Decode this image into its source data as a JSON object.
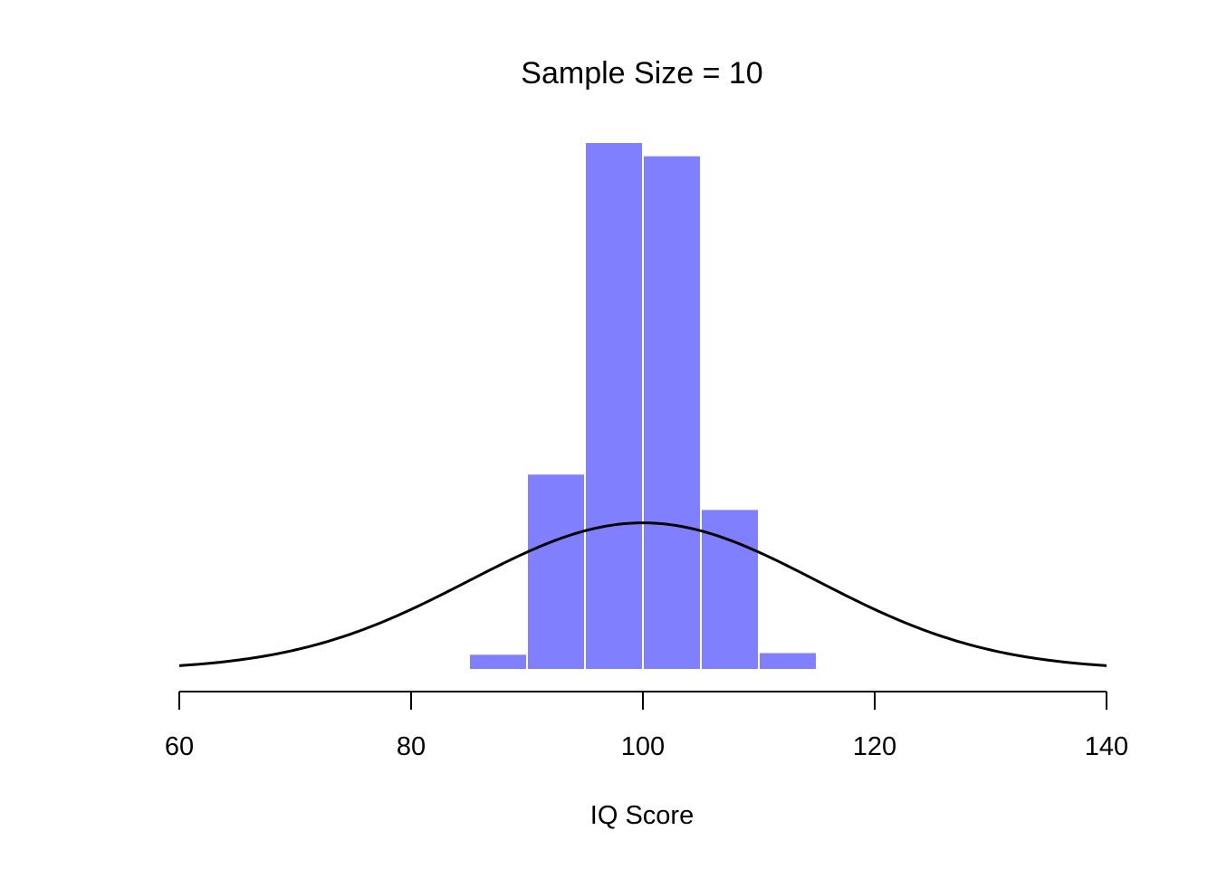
{
  "chart_data": {
    "type": "bar",
    "title": "Sample Size = 10",
    "xlabel": "IQ Score",
    "ylabel": "",
    "xlim": [
      60,
      140
    ],
    "x_ticks": [
      60,
      80,
      100,
      120,
      140
    ],
    "x_tick_labels": [
      "60",
      "80",
      "100",
      "120",
      "140"
    ],
    "y_axis_shown": false,
    "grid": false,
    "histogram": {
      "bin_edges": [
        85,
        90,
        95,
        100,
        105,
        110,
        115
      ],
      "density": [
        0.0029,
        0.0355,
        0.0955,
        0.0931,
        0.0291,
        0.0032
      ],
      "color": "#8080FF",
      "edge_color": "#FFFFFF"
    },
    "normal_curve": {
      "mean": 100,
      "sd": 15,
      "peak_density": 0.0266,
      "color": "#000000"
    },
    "ylim": [
      0,
      0.0955
    ]
  }
}
